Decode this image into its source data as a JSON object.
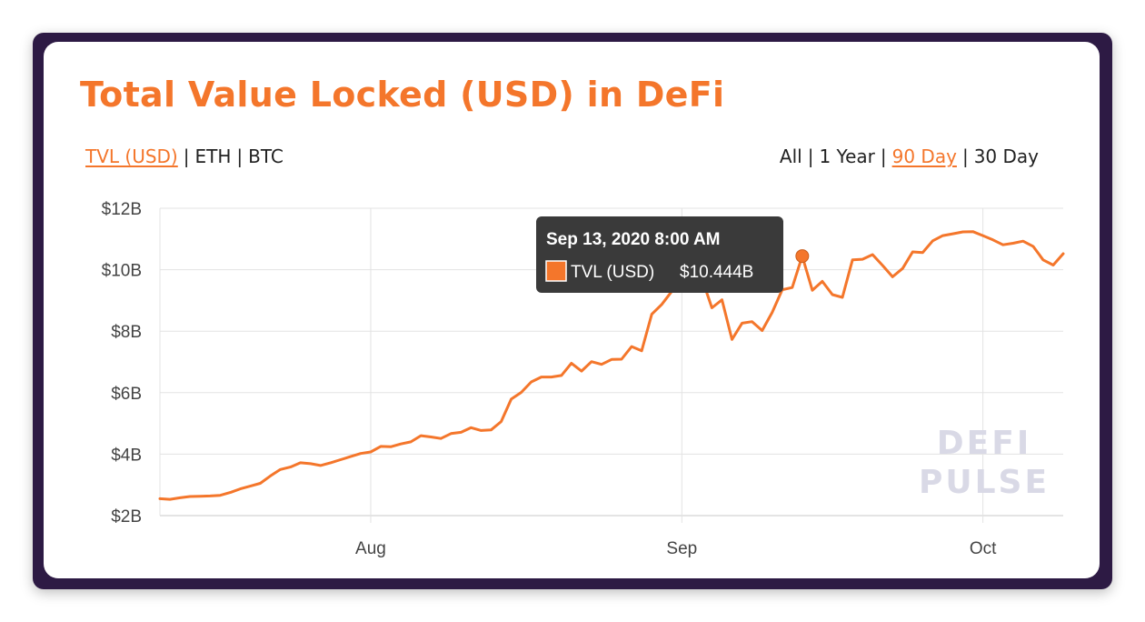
{
  "title": "Total Value Locked (USD) in DeFi",
  "metric_tabs": [
    {
      "label": "TVL (USD)",
      "active": true
    },
    {
      "label": "ETH",
      "active": false
    },
    {
      "label": "BTC",
      "active": false
    }
  ],
  "range_tabs": [
    {
      "label": "All",
      "active": false
    },
    {
      "label": "1 Year",
      "active": false
    },
    {
      "label": "90 Day",
      "active": true
    },
    {
      "label": "30 Day",
      "active": false
    }
  ],
  "separator": "|",
  "tooltip": {
    "date": "Sep 13, 2020 8:00 AM",
    "series": "TVL (USD)",
    "value": "$10.444B"
  },
  "watermark": [
    "DEFI",
    "PULSE"
  ],
  "colors": {
    "accent": "#f4762b",
    "frame": "#2d1a44",
    "tooltip_bg": "#3a3a3a",
    "grid": "#e3e3e3"
  },
  "chart_data": {
    "type": "line",
    "title": "Total Value Locked (USD) in DeFi",
    "xlabel": "",
    "ylabel": "",
    "x_range": [
      "2020-07-11",
      "2020-10-09"
    ],
    "ylim": [
      2,
      12
    ],
    "y_unit": "billion USD",
    "yticks": [
      2,
      4,
      6,
      8,
      10,
      12
    ],
    "ytick_labels": [
      "$2B",
      "$4B",
      "$6B",
      "$8B",
      "$10B",
      "$12B"
    ],
    "xticks": [
      "2020-08-01",
      "2020-09-01",
      "2020-10-01"
    ],
    "xtick_labels": [
      "Aug",
      "Sep",
      "Oct"
    ],
    "grid": true,
    "legend": "none",
    "series": [
      {
        "name": "TVL (USD)",
        "color": "#f4762b",
        "points": [
          [
            "2020-07-11",
            2.55
          ],
          [
            "2020-07-12",
            2.53
          ],
          [
            "2020-07-13",
            2.58
          ],
          [
            "2020-07-14",
            2.62
          ],
          [
            "2020-07-15",
            2.63
          ],
          [
            "2020-07-16",
            2.64
          ],
          [
            "2020-07-17",
            2.66
          ],
          [
            "2020-07-18",
            2.75
          ],
          [
            "2020-07-19",
            2.87
          ],
          [
            "2020-07-20",
            2.96
          ],
          [
            "2020-07-21",
            3.05
          ],
          [
            "2020-07-22",
            3.29
          ],
          [
            "2020-07-23",
            3.5
          ],
          [
            "2020-07-24",
            3.58
          ],
          [
            "2020-07-25",
            3.72
          ],
          [
            "2020-07-26",
            3.69
          ],
          [
            "2020-07-27",
            3.63
          ],
          [
            "2020-07-28",
            3.72
          ],
          [
            "2020-07-29",
            3.82
          ],
          [
            "2020-07-30",
            3.92
          ],
          [
            "2020-07-31",
            4.02
          ],
          [
            "2020-08-01",
            4.07
          ],
          [
            "2020-08-02",
            4.25
          ],
          [
            "2020-08-03",
            4.24
          ],
          [
            "2020-08-04",
            4.33
          ],
          [
            "2020-08-05",
            4.4
          ],
          [
            "2020-08-06",
            4.6
          ],
          [
            "2020-08-07",
            4.56
          ],
          [
            "2020-08-08",
            4.51
          ],
          [
            "2020-08-09",
            4.67
          ],
          [
            "2020-08-10",
            4.71
          ],
          [
            "2020-08-11",
            4.86
          ],
          [
            "2020-08-12",
            4.77
          ],
          [
            "2020-08-13",
            4.79
          ],
          [
            "2020-08-14",
            5.06
          ],
          [
            "2020-08-15",
            5.79
          ],
          [
            "2020-08-16",
            6.01
          ],
          [
            "2020-08-17",
            6.35
          ],
          [
            "2020-08-18",
            6.51
          ],
          [
            "2020-08-19",
            6.51
          ],
          [
            "2020-08-20",
            6.56
          ],
          [
            "2020-08-21",
            6.96
          ],
          [
            "2020-08-22",
            6.7
          ],
          [
            "2020-08-23",
            7.01
          ],
          [
            "2020-08-24",
            6.92
          ],
          [
            "2020-08-25",
            7.08
          ],
          [
            "2020-08-26",
            7.09
          ],
          [
            "2020-08-27",
            7.5
          ],
          [
            "2020-08-28",
            7.36
          ],
          [
            "2020-08-29",
            8.55
          ],
          [
            "2020-08-30",
            8.87
          ],
          [
            "2020-08-31",
            9.3
          ],
          [
            "2020-09-01",
            9.69
          ],
          [
            "2020-09-02",
            9.78
          ],
          [
            "2020-09-03",
            9.72
          ],
          [
            "2020-09-04",
            8.76
          ],
          [
            "2020-09-05",
            9.02
          ],
          [
            "2020-09-06",
            7.73
          ],
          [
            "2020-09-07",
            8.26
          ],
          [
            "2020-09-08",
            8.31
          ],
          [
            "2020-09-09",
            8.02
          ],
          [
            "2020-09-10",
            8.61
          ],
          [
            "2020-09-11",
            9.35
          ],
          [
            "2020-09-12",
            9.42
          ],
          [
            "2020-09-13",
            10.444
          ],
          [
            "2020-09-14",
            9.33
          ],
          [
            "2020-09-15",
            9.62
          ],
          [
            "2020-09-16",
            9.19
          ],
          [
            "2020-09-17",
            9.1
          ],
          [
            "2020-09-18",
            10.32
          ],
          [
            "2020-09-19",
            10.34
          ],
          [
            "2020-09-20",
            10.49
          ],
          [
            "2020-09-21",
            10.14
          ],
          [
            "2020-09-22",
            9.77
          ],
          [
            "2020-09-23",
            10.04
          ],
          [
            "2020-09-24",
            10.58
          ],
          [
            "2020-09-25",
            10.56
          ],
          [
            "2020-09-26",
            10.94
          ],
          [
            "2020-09-27",
            11.11
          ],
          [
            "2020-09-28",
            11.17
          ],
          [
            "2020-09-29",
            11.23
          ],
          [
            "2020-09-30",
            11.24
          ],
          [
            "2020-10-01",
            11.11
          ],
          [
            "2020-10-02",
            10.97
          ],
          [
            "2020-10-03",
            10.81
          ],
          [
            "2020-10-04",
            10.86
          ],
          [
            "2020-10-05",
            10.93
          ],
          [
            "2020-10-06",
            10.76
          ],
          [
            "2020-10-07",
            10.32
          ],
          [
            "2020-10-08",
            10.15
          ],
          [
            "2020-10-09",
            10.52
          ]
        ]
      }
    ],
    "highlighted_point": [
      "2020-09-13",
      10.444
    ]
  }
}
